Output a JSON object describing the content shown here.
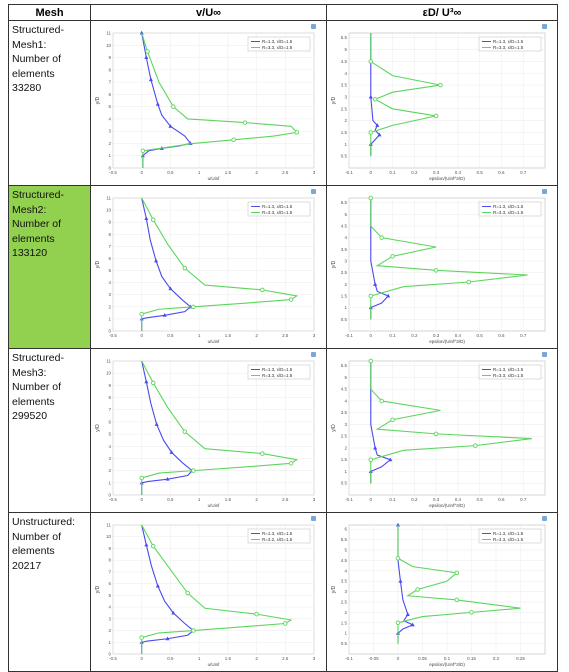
{
  "table": {
    "headers": [
      "Mesh",
      "v/U∞",
      "εD/ U³∞"
    ],
    "rows": [
      {
        "mesh_lines": [
          "Structured-",
          "Mesh1:",
          "Number of",
          "elements",
          "33280"
        ],
        "highlight": false
      },
      {
        "mesh_lines": [
          "Structured-",
          "Mesh2:",
          "Number of",
          "elements",
          "133120"
        ],
        "highlight": true
      },
      {
        "mesh_lines": [
          "Structured-",
          "Mesh3:",
          "Number of",
          "elements",
          "299520"
        ],
        "highlight": false
      },
      {
        "mesh_lines": [
          "Unstructured:",
          "Number of",
          "elements",
          "20217"
        ],
        "highlight": false
      }
    ]
  },
  "colors": {
    "blue": "#4a4af0",
    "green": "#5cd65c",
    "highlight": "#92d050"
  },
  "chart_data": [
    {
      "type": "line",
      "row": 1,
      "col": "velocity",
      "xlabel": "u/Uinf",
      "ylabel": "y/D",
      "xlim": [
        -0.5,
        3
      ],
      "ylim": [
        0,
        11
      ],
      "xticks": [
        "-0.5",
        "0",
        "0.5",
        "1",
        "1.5",
        "2",
        "2.5",
        "3"
      ],
      "yticks": [
        "0",
        "1",
        "2",
        "3",
        "4",
        "5",
        "6",
        "7",
        "8",
        "9",
        "10",
        "11"
      ],
      "legend_position": "top-right",
      "series": [
        {
          "name": "R=1.3, x/D=1.5",
          "color": "blue",
          "x": [
            0.02,
            0.02,
            0.12,
            0.35,
            0.65,
            0.85,
            0.75,
            0.5,
            0.35,
            0.28,
            0.22,
            0.16,
            0.12,
            0.08,
            0.04,
            0.0
          ],
          "y": [
            0,
            1.0,
            1.4,
            1.6,
            1.8,
            2.0,
            2.6,
            3.4,
            4.3,
            5.2,
            6.2,
            7.2,
            8.1,
            9.0,
            10.0,
            11.0
          ]
        },
        {
          "name": "R=3.3, x/D=1.5",
          "color": "green",
          "x": [
            0.02,
            0.02,
            0.9,
            1.6,
            2.3,
            2.7,
            2.6,
            1.8,
            0.8,
            0.55,
            0.3,
            0.1,
            0.0
          ],
          "y": [
            0,
            1.4,
            2.0,
            2.3,
            2.6,
            2.9,
            3.4,
            3.7,
            4.0,
            5.0,
            7.0,
            9.5,
            11.0
          ]
        }
      ]
    },
    {
      "type": "line",
      "row": 1,
      "col": "dissipation",
      "xlabel": "epsilon/(Uinf^3/D)",
      "ylabel": "y/D",
      "xlim": [
        -0.1,
        0.8
      ],
      "ylim": [
        0,
        5.7
      ],
      "xticks": [
        "-0.1",
        "0",
        "0.1",
        "0.2",
        "0.3",
        "0.4",
        "0.5",
        "0.6",
        "0.7"
      ],
      "yticks": [
        "0.5",
        "1",
        "1.5",
        "2",
        "2.5",
        "3",
        "3.5",
        "4",
        "4.5",
        "5",
        "5.5"
      ],
      "legend_position": "top-right",
      "series": [
        {
          "name": "R=1.3, x/D=1.5",
          "color": "blue",
          "x": [
            0.0,
            0.0,
            0.02,
            0.04,
            0.02,
            0.03,
            0.01,
            0.0,
            0.0
          ],
          "y": [
            0.5,
            1.0,
            1.2,
            1.4,
            1.6,
            1.8,
            2.0,
            3.0,
            5.7
          ]
        },
        {
          "name": "R=3.3, x/D=1.5",
          "color": "green",
          "x": [
            0.0,
            0.0,
            0.1,
            0.3,
            0.1,
            0.02,
            0.1,
            0.32,
            0.1,
            0.0,
            0.0
          ],
          "y": [
            0.5,
            1.5,
            1.8,
            2.2,
            2.5,
            2.9,
            3.2,
            3.5,
            3.9,
            4.5,
            5.7
          ]
        }
      ]
    },
    {
      "type": "line",
      "row": 2,
      "col": "velocity",
      "xlabel": "u/Uinf",
      "ylabel": "y/D",
      "xlim": [
        -0.5,
        3
      ],
      "ylim": [
        0,
        11
      ],
      "xticks": [
        "-0.5",
        "0",
        "0.5",
        "1",
        "1.5",
        "2",
        "2.5",
        "3"
      ],
      "yticks": [
        "0",
        "1",
        "2",
        "3",
        "4",
        "5",
        "6",
        "7",
        "8",
        "9",
        "10",
        "11"
      ],
      "legend_position": "top-right",
      "series": [
        {
          "name": "R=1.3, x/D=1.5",
          "color": "blue",
          "x": [
            0.0,
            0.0,
            0.1,
            0.4,
            0.75,
            0.85,
            0.7,
            0.5,
            0.35,
            0.25,
            0.15,
            0.08,
            0.0
          ],
          "y": [
            0,
            1.0,
            1.1,
            1.3,
            1.6,
            2.0,
            2.6,
            3.5,
            4.5,
            5.8,
            7.5,
            9.3,
            11.0
          ]
        },
        {
          "name": "R=3.3, x/D=1.5",
          "color": "green",
          "x": [
            0.0,
            0.0,
            0.3,
            0.9,
            1.8,
            2.6,
            2.7,
            2.1,
            1.1,
            0.75,
            0.45,
            0.2,
            0.0
          ],
          "y": [
            0,
            1.4,
            1.8,
            2.0,
            2.3,
            2.6,
            2.9,
            3.4,
            3.8,
            5.2,
            7.2,
            9.2,
            11.0
          ]
        }
      ]
    },
    {
      "type": "line",
      "row": 2,
      "col": "dissipation",
      "xlabel": "epsilon/(Uinf^3/D)",
      "ylabel": "y/D",
      "xlim": [
        -0.1,
        0.8
      ],
      "ylim": [
        0,
        5.7
      ],
      "xticks": [
        "-0.1",
        "0",
        "0.1",
        "0.2",
        "0.3",
        "0.4",
        "0.5",
        "0.6",
        "0.7"
      ],
      "yticks": [
        "0.5",
        "1",
        "1.5",
        "2",
        "2.5",
        "3",
        "3.5",
        "4",
        "4.5",
        "5",
        "5.5"
      ],
      "legend_position": "top-right",
      "series": [
        {
          "name": "R=1.3, x/D=1.5",
          "color": "blue",
          "x": [
            0.0,
            0.0,
            0.05,
            0.08,
            0.03,
            0.02,
            0.0,
            0.0
          ],
          "y": [
            0.5,
            1.0,
            1.2,
            1.5,
            1.7,
            2.0,
            3.0,
            5.7
          ]
        },
        {
          "name": "R=3.3, x/D=1.5",
          "color": "green",
          "x": [
            0.0,
            0.0,
            0.15,
            0.45,
            0.72,
            0.3,
            0.03,
            0.1,
            0.3,
            0.05,
            0.0,
            0.0
          ],
          "y": [
            0.5,
            1.5,
            1.9,
            2.1,
            2.4,
            2.6,
            2.8,
            3.2,
            3.6,
            4.0,
            4.5,
            5.7
          ]
        }
      ]
    },
    {
      "type": "line",
      "row": 3,
      "col": "velocity",
      "xlabel": "u/Uinf",
      "ylabel": "y/D",
      "xlim": [
        -0.5,
        3
      ],
      "ylim": [
        0,
        11
      ],
      "xticks": [
        "-0.5",
        "0",
        "0.5",
        "1",
        "1.5",
        "2",
        "2.5",
        "3"
      ],
      "yticks": [
        "0",
        "1",
        "2",
        "3",
        "4",
        "5",
        "6",
        "7",
        "8",
        "9",
        "10",
        "11"
      ],
      "legend_position": "top-right",
      "series": [
        {
          "name": "R=1.3, x/D=1.5",
          "color": "blue",
          "x": [
            0.0,
            0.0,
            0.1,
            0.45,
            0.8,
            0.88,
            0.72,
            0.52,
            0.38,
            0.26,
            0.16,
            0.08,
            0.0
          ],
          "y": [
            0,
            1.0,
            1.1,
            1.3,
            1.6,
            2.0,
            2.6,
            3.5,
            4.5,
            5.8,
            7.5,
            9.3,
            11.0
          ]
        },
        {
          "name": "R=3.3, x/D=1.5",
          "color": "green",
          "x": [
            0.0,
            0.0,
            0.3,
            0.9,
            1.8,
            2.6,
            2.7,
            2.1,
            1.1,
            0.75,
            0.45,
            0.2,
            0.0
          ],
          "y": [
            0,
            1.4,
            1.8,
            2.0,
            2.3,
            2.6,
            2.9,
            3.4,
            3.8,
            5.2,
            7.2,
            9.2,
            11.0
          ]
        }
      ]
    },
    {
      "type": "line",
      "row": 3,
      "col": "dissipation",
      "xlabel": "epsilon/(Uinf^3/D)",
      "ylabel": "y/D",
      "xlim": [
        -0.1,
        0.8
      ],
      "ylim": [
        0,
        5.7
      ],
      "xticks": [
        "-0.1",
        "0",
        "0.1",
        "0.2",
        "0.3",
        "0.4",
        "0.5",
        "0.6",
        "0.7"
      ],
      "yticks": [
        "0.5",
        "1",
        "1.5",
        "2",
        "2.5",
        "3",
        "3.5",
        "4",
        "4.5",
        "5",
        "5.5"
      ],
      "legend_position": "top-right",
      "series": [
        {
          "name": "R=1.3, x/D=1.5",
          "color": "blue",
          "x": [
            0.0,
            0.0,
            0.05,
            0.09,
            0.03,
            0.02,
            0.0,
            0.0
          ],
          "y": [
            0.5,
            1.0,
            1.2,
            1.5,
            1.7,
            2.0,
            3.0,
            5.7
          ]
        },
        {
          "name": "R=3.3, x/D=1.5",
          "color": "green",
          "x": [
            0.0,
            0.0,
            0.15,
            0.48,
            0.74,
            0.3,
            0.03,
            0.1,
            0.32,
            0.05,
            0.0,
            0.0
          ],
          "y": [
            0.5,
            1.5,
            1.9,
            2.1,
            2.4,
            2.6,
            2.8,
            3.2,
            3.6,
            4.0,
            4.5,
            5.7
          ]
        }
      ]
    },
    {
      "type": "line",
      "row": 4,
      "col": "velocity",
      "xlabel": "u/Uinf",
      "ylabel": "y/D",
      "xlim": [
        -0.5,
        3
      ],
      "ylim": [
        0,
        11
      ],
      "xticks": [
        "-0.5",
        "0",
        "0.5",
        "1",
        "1.5",
        "2",
        "2.5",
        "3"
      ],
      "yticks": [
        "0",
        "1",
        "2",
        "3",
        "4",
        "5",
        "6",
        "7",
        "8",
        "9",
        "10",
        "11"
      ],
      "legend_position": "top-right",
      "series": [
        {
          "name": "R=1.3, x/D=1.5",
          "color": "blue",
          "x": [
            0.0,
            0.0,
            0.1,
            0.45,
            0.8,
            0.9,
            0.75,
            0.55,
            0.4,
            0.28,
            0.17,
            0.08,
            0.0
          ],
          "y": [
            0,
            1.0,
            1.1,
            1.3,
            1.6,
            2.0,
            2.6,
            3.5,
            4.5,
            5.8,
            7.5,
            9.3,
            11.0
          ]
        },
        {
          "name": "R=3.2, x/D=1.5",
          "color": "green",
          "x": [
            0.0,
            0.0,
            0.3,
            0.9,
            1.7,
            2.5,
            2.6,
            2.0,
            1.1,
            0.8,
            0.5,
            0.2,
            0.0
          ],
          "y": [
            0,
            1.4,
            1.8,
            2.0,
            2.3,
            2.6,
            2.9,
            3.4,
            3.9,
            5.2,
            7.2,
            9.2,
            11.0
          ]
        }
      ]
    },
    {
      "type": "line",
      "row": 4,
      "col": "dissipation",
      "xlabel": "epsilon/(Uinf^3/D)",
      "ylabel": "y/D",
      "xlim": [
        -0.1,
        0.3
      ],
      "ylim": [
        0,
        6.2
      ],
      "xticks": [
        "-0.1",
        "-0.05",
        "0",
        "0.05",
        "0.1",
        "0.15",
        "0.2",
        "0.25"
      ],
      "yticks": [
        "0.5",
        "1",
        "1.5",
        "2",
        "2.5",
        "3",
        "3.5",
        "4",
        "4.5",
        "5",
        "5.5",
        "6"
      ],
      "legend_position": "top-right",
      "series": [
        {
          "name": "R=1.3, x/D=1.5",
          "color": "blue",
          "x": [
            0.0,
            0.0,
            0.01,
            0.03,
            0.012,
            0.02,
            0.01,
            0.005,
            0.0,
            0.0
          ],
          "y": [
            0.5,
            1.0,
            1.2,
            1.4,
            1.6,
            1.9,
            2.6,
            3.5,
            4.5,
            6.2
          ]
        },
        {
          "name": "R=3.3, x/D=1.5",
          "color": "green",
          "x": [
            0.0,
            0.0,
            0.05,
            0.15,
            0.25,
            0.12,
            0.02,
            0.04,
            0.1,
            0.12,
            0.03,
            0.0,
            0.0
          ],
          "y": [
            0.5,
            1.5,
            1.8,
            2.0,
            2.2,
            2.6,
            2.8,
            3.1,
            3.5,
            3.9,
            4.2,
            4.6,
            6.2
          ]
        }
      ]
    }
  ]
}
